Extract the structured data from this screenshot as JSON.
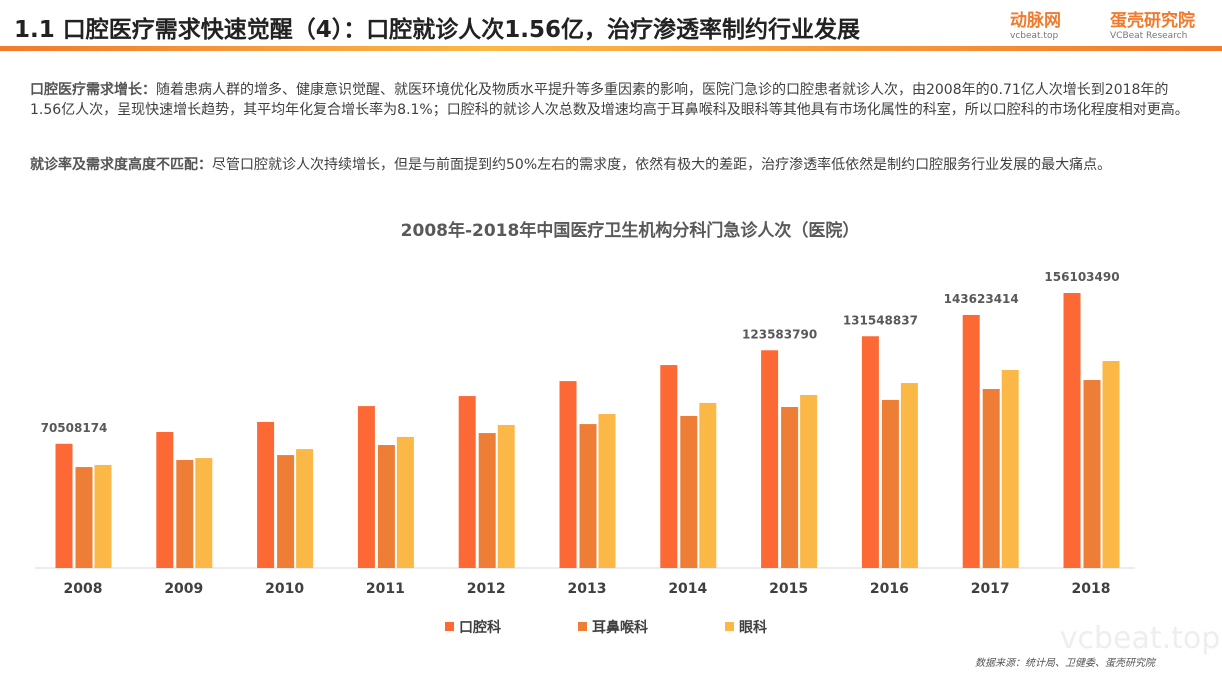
{
  "header": {
    "title": "1.1 口腔医疗需求快速觉醒（4）：口腔就诊人次1.56亿，治疗渗透率制约行业发展",
    "logo1": "动脉网",
    "logo1_sub": "vcbeat.top",
    "logo2": "蛋壳研究院",
    "logo2_sub": "VCBeat Research"
  },
  "paragraphs": [
    {
      "lead": "口腔医疗需求增长：",
      "text": "随着患病人群的增多、健康意识觉醒、就医环境优化及物质水平提升等多重因素的影响，医院门急诊的口腔患者就诊人次，由2008年的0.71亿人次增长到2018年的1.56亿人次，呈现快速增长趋势，其平均年化复合增长率为8.1%；口腔科的就诊人次总数及增速均高于耳鼻喉科及眼科等其他具有市场化属性的科室，所以口腔科的市场化程度相对更高。"
    },
    {
      "lead": "就诊率及需求度高度不匹配：",
      "text": "尽管口腔就诊人次持续增长，但是与前面提到约50%左右的需求度，依然有极大的差距，治疗渗透率低依然是制约口腔服务行业发展的最大痛点。"
    }
  ],
  "chart_data": {
    "type": "bar",
    "title": "2008年-2018年中国医疗卫生机构分科门急诊人次（医院）",
    "categories": [
      "2008",
      "2009",
      "2010",
      "2011",
      "2012",
      "2013",
      "2014",
      "2015",
      "2016",
      "2017",
      "2018"
    ],
    "series": [
      {
        "name": "口腔科",
        "color": "#fd6935",
        "values": [
          70508174,
          77200000,
          82900000,
          91900000,
          97600000,
          106100000,
          115200000,
          123583790,
          131548837,
          143623414,
          156103490
        ],
        "value_labels": [
          "70508174",
          null,
          null,
          null,
          null,
          null,
          null,
          "123583790",
          "131548837",
          "143623414",
          "156103490"
        ]
      },
      {
        "name": "耳鼻喉科",
        "color": "#ee7d36",
        "values": [
          57300000,
          61300000,
          64100000,
          69800000,
          76600000,
          81700000,
          86300000,
          91400000,
          95400000,
          101600000,
          106700000
        ]
      },
      {
        "name": "眼科",
        "color": "#fbb847",
        "values": [
          58500000,
          62400000,
          67500000,
          74400000,
          81200000,
          87400000,
          93700000,
          98200000,
          105000000,
          112400000,
          117500000
        ]
      }
    ]
  },
  "source": "数据来源：统计局、卫健委、蛋壳研究院",
  "watermark": "vcbeat.top"
}
